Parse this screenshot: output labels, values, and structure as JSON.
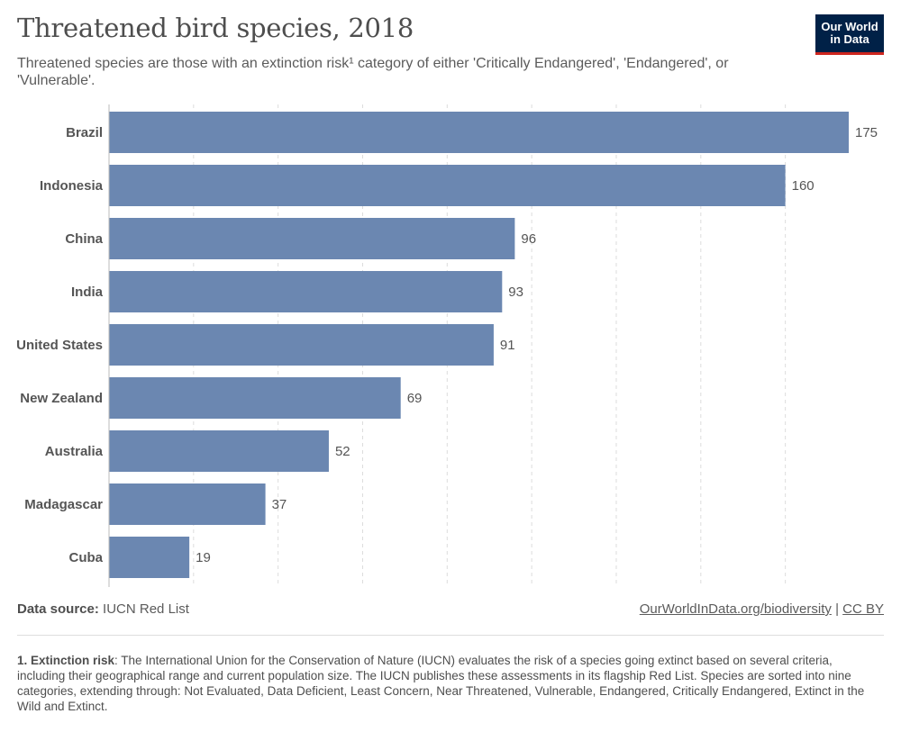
{
  "header": {
    "title": "Threatened bird species, 2018",
    "subtitle": "Threatened species are those with an extinction risk¹ category of either 'Critically Endangered', 'Endangered', or 'Vulnerable'."
  },
  "logo": {
    "line1": "Our World",
    "line2": "in Data",
    "bg_color": "#002147",
    "accent_color": "#ce261e"
  },
  "chart_data": {
    "type": "bar",
    "orientation": "horizontal",
    "categories": [
      "Brazil",
      "Indonesia",
      "China",
      "India",
      "United States",
      "New Zealand",
      "Australia",
      "Madagascar",
      "Cuba"
    ],
    "values": [
      175,
      160,
      96,
      93,
      91,
      69,
      52,
      37,
      19
    ],
    "title": "Threatened bird species, 2018",
    "xlim": [
      0,
      175
    ],
    "grid": "vertical-dashed",
    "gridlines": [
      20,
      40,
      60,
      80,
      100,
      120,
      140,
      160
    ],
    "bar_color": "#6b87b1"
  },
  "footer": {
    "source_label": "Data source:",
    "source_value": "IUCN Red List",
    "link_text": "OurWorldInData.org/biodiversity",
    "separator": "|",
    "license": "CC BY"
  },
  "footnote": {
    "term": "1. Extinction risk",
    "text": ": The International Union for the Conservation of Nature (IUCN) evaluates the risk of a species going extinct based on several criteria, including their geographical range and current population size. The IUCN publishes these assessments in its flagship Red List. Species are sorted into nine categories, extending through: Not Evaluated, Data Deficient, Least Concern, Near Threatened, Vulnerable, Endangered, Critically Endangered, Extinct in the Wild and Extinct."
  }
}
